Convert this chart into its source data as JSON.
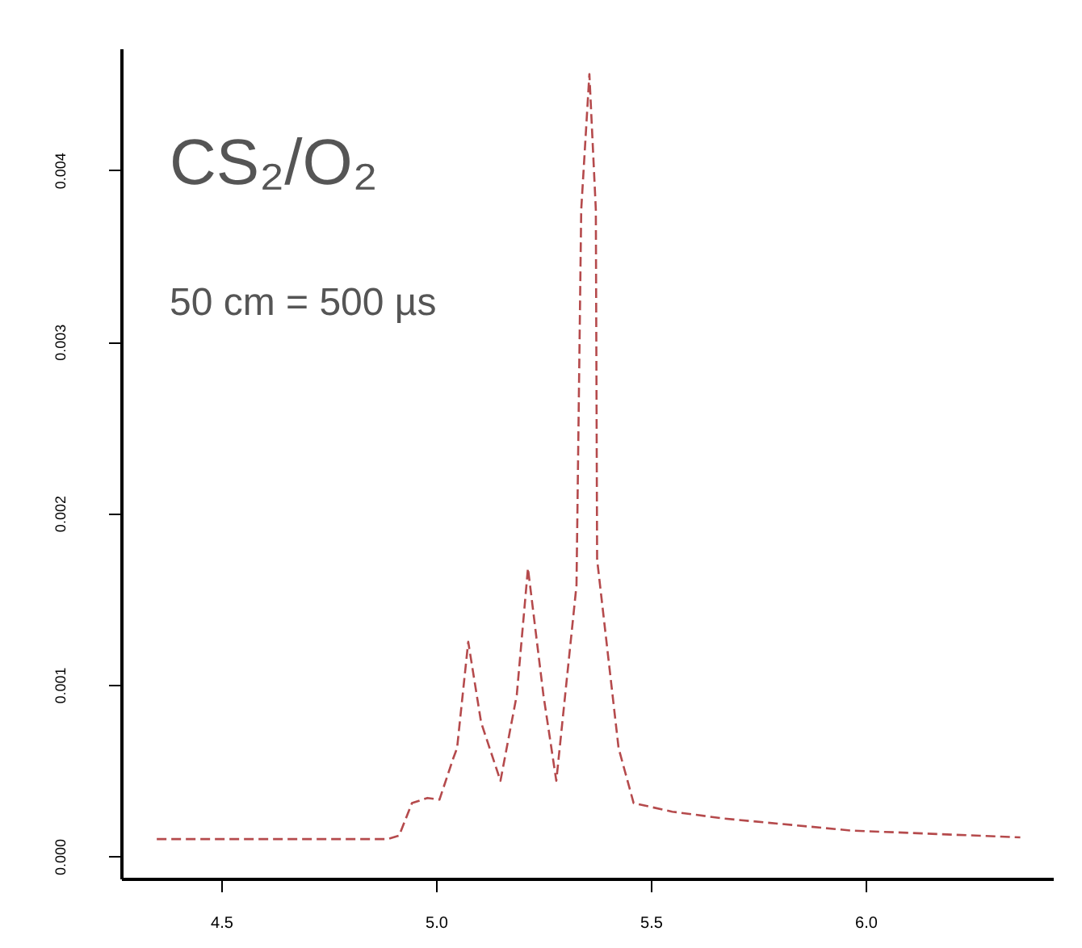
{
  "chart_data": {
    "type": "line",
    "title": "CS₂/O₂",
    "annotations": [
      "50 cm = 500 µs"
    ],
    "x": [
      4.35,
      4.887,
      4.914,
      4.944,
      4.98,
      5.008,
      5.04,
      5.049,
      5.075,
      5.105,
      5.15,
      5.188,
      5.214,
      5.25,
      5.28,
      5.327,
      5.338,
      5.357,
      5.372,
      5.375,
      5.425,
      5.46,
      5.55,
      5.67,
      5.966,
      6.36
    ],
    "series": [
      {
        "color": "#b54a4c",
        "values": [
          0.0001,
          0.0001,
          0.00012,
          0.00031,
          0.00034,
          0.00033,
          0.00057,
          0.00063,
          0.00125,
          0.00078,
          0.00044,
          0.00094,
          0.00168,
          0.00094,
          0.00044,
          0.00158,
          0.00377,
          0.00456,
          0.00377,
          0.00173,
          0.00063,
          0.00031,
          0.00026,
          0.00022,
          0.00015,
          0.00011
        ]
      }
    ],
    "xlim": [
      4.267,
      6.436
    ],
    "ylim": [
      -0.00013,
      0.00471
    ],
    "xticks": [
      4.5,
      {
        "value": 5,
        "label": "5.0"
      },
      5.5,
      {
        "value": 6,
        "label": "6.0"
      }
    ],
    "yticks": [
      {
        "value": 0,
        "label": "0.000"
      },
      {
        "value": 0.001,
        "label": "0.001"
      },
      {
        "value": 0.002,
        "label": "0.002"
      },
      {
        "value": 0.003,
        "label": "0.003"
      },
      {
        "value": 0.004,
        "label": "0.004"
      }
    ],
    "grid": false,
    "line_style": "dashed",
    "marker": "none"
  }
}
